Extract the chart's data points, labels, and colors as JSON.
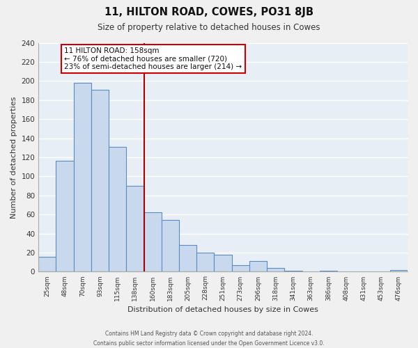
{
  "title": "11, HILTON ROAD, COWES, PO31 8JB",
  "subtitle": "Size of property relative to detached houses in Cowes",
  "xlabel": "Distribution of detached houses by size in Cowes",
  "ylabel": "Number of detached properties",
  "footer_line1": "Contains HM Land Registry data © Crown copyright and database right 2024.",
  "footer_line2": "Contains public sector information licensed under the Open Government Licence v3.0.",
  "bar_labels": [
    "25sqm",
    "48sqm",
    "70sqm",
    "93sqm",
    "115sqm",
    "138sqm",
    "160sqm",
    "183sqm",
    "205sqm",
    "228sqm",
    "251sqm",
    "273sqm",
    "296sqm",
    "318sqm",
    "341sqm",
    "363sqm",
    "386sqm",
    "408sqm",
    "431sqm",
    "453sqm",
    "476sqm"
  ],
  "bar_values": [
    16,
    116,
    198,
    191,
    131,
    90,
    62,
    54,
    28,
    20,
    18,
    7,
    11,
    4,
    1,
    0,
    1,
    0,
    0,
    0,
    2
  ],
  "bar_color": "#c8d9ee",
  "bar_edge_color": "#5b8cc0",
  "vline_color": "#aa0000",
  "annotation_title": "11 HILTON ROAD: 158sqm",
  "annotation_line1": "← 76% of detached houses are smaller (720)",
  "annotation_line2": "23% of semi-detached houses are larger (214) →",
  "annotation_box_color": "#ffffff",
  "annotation_box_edge": "#cc0000",
  "ylim": [
    0,
    240
  ],
  "yticks": [
    0,
    20,
    40,
    60,
    80,
    100,
    120,
    140,
    160,
    180,
    200,
    220,
    240
  ],
  "background_color": "#f0f0f0",
  "grid_color": "#ffffff",
  "plot_bg_color": "#e8eef5"
}
